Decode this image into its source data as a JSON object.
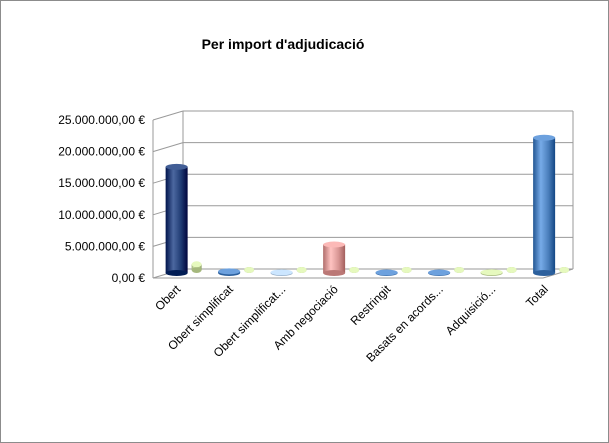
{
  "chart_data": {
    "type": "bar",
    "title": "Per import d'adjudicació",
    "categories": [
      "Obert",
      "Obert simplificat",
      "Obert simplificat...",
      "Amb negociació",
      "Restringit",
      "Basats en acords...",
      "Adquisició...",
      "Total"
    ],
    "series": [
      {
        "values": [
          16800000,
          250000,
          100000,
          4500000,
          80000,
          80000,
          120000,
          21400000
        ],
        "colors": [
          "#1f3b73",
          "#4a7ebb",
          "#a9c3df",
          "#d99694",
          "#4a7ebb",
          "#4a7ebb",
          "#c3d69b",
          "#4a7ebb"
        ]
      },
      {
        "values": [
          900000,
          0,
          0,
          0,
          0,
          0,
          0,
          0
        ],
        "colors": [
          "#c3d69b",
          "#c3d69b",
          "#c3d69b",
          "#c3d69b",
          "#c3d69b",
          "#c3d69b",
          "#c3d69b",
          "#c3d69b"
        ]
      }
    ],
    "ylim": [
      0,
      25000000
    ],
    "y_ticks": [
      0,
      5000000,
      10000000,
      15000000,
      20000000,
      25000000
    ],
    "y_tick_labels": [
      "0,00 €",
      "5.000.000,00 €",
      "10.000.000,00 €",
      "15.000.000,00 €",
      "20.000.000,00 €",
      "25.000.000,00 €"
    ],
    "xlabel": "",
    "ylabel": "",
    "grid": true,
    "legend": "none",
    "style": "3d-cylinder"
  }
}
